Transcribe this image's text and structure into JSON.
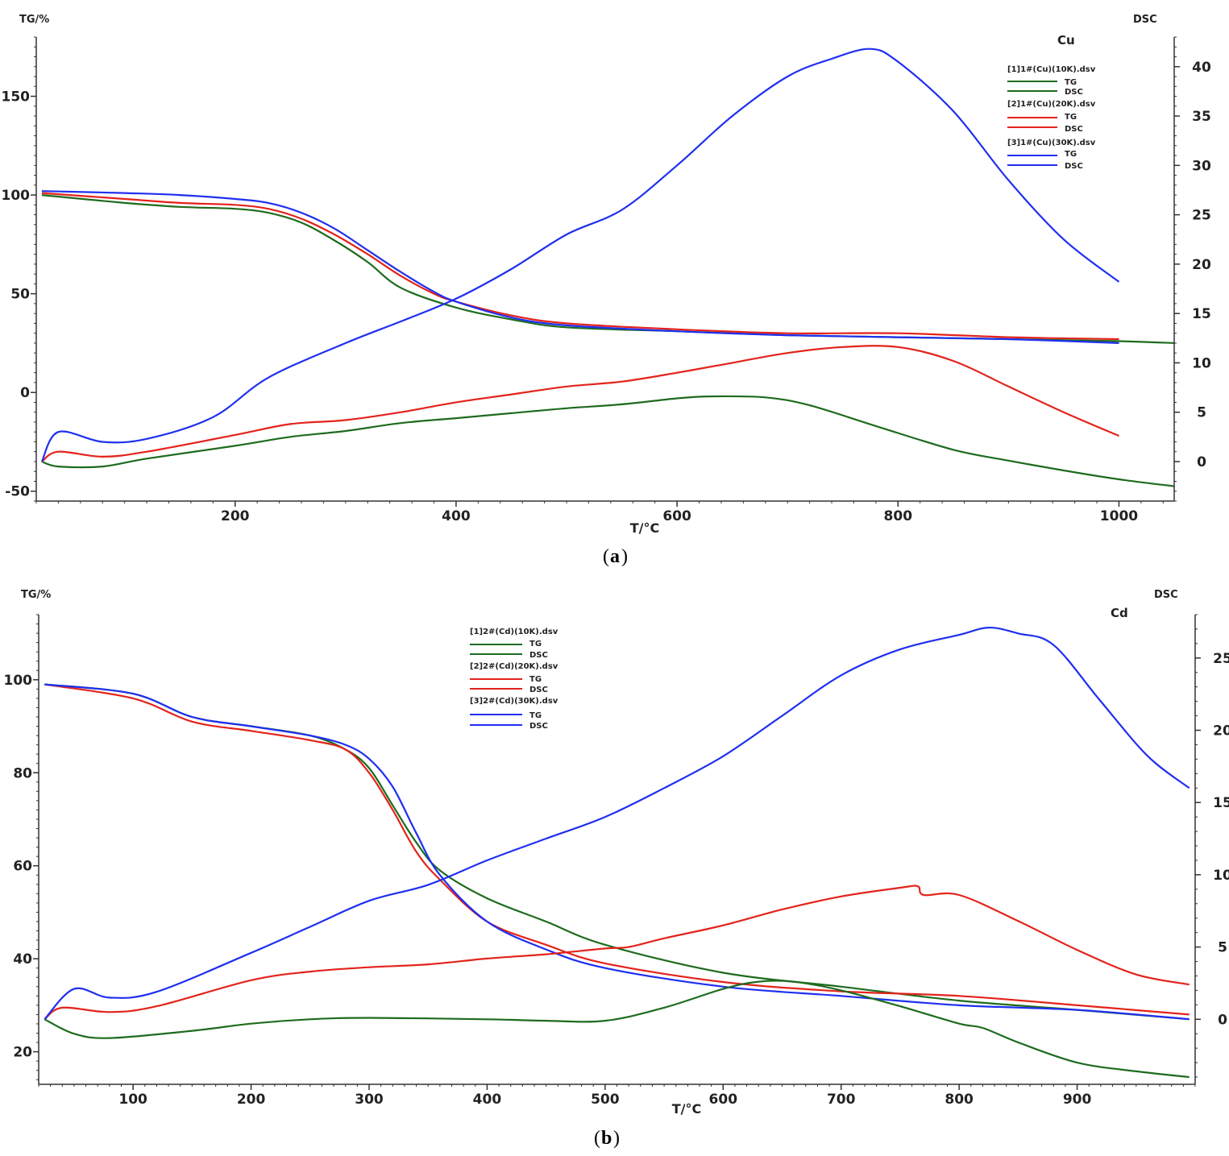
{
  "colors": {
    "green": "#1e6b1e",
    "red": "#e3231b",
    "blue": "#1f2ff0"
  },
  "chart_data": [
    {
      "type": "line",
      "panel": "a",
      "caption_open": "(",
      "caption_letter": "a",
      "caption_close": ")",
      "subtitle": "Cu",
      "ylabel_left": "TG/%",
      "ylabel_right": "DSC",
      "xlabel": "T/°C",
      "xlim": [
        20,
        1050
      ],
      "ylim_left": [
        -55,
        180
      ],
      "ylim_right": [
        -4,
        43
      ],
      "x_ticks": [
        200,
        400,
        600,
        800,
        1000
      ],
      "x_tick_labels": [
        "200",
        "400",
        "600",
        "800",
        "1000"
      ],
      "y_left_ticks": [
        -50,
        0,
        50,
        100,
        150
      ],
      "y_left_tick_labels": [
        "-50",
        "0",
        "50",
        "100",
        "150"
      ],
      "y_right_ticks": [
        0,
        5,
        10,
        15,
        20,
        25,
        30,
        35,
        40
      ],
      "y_right_tick_labels": [
        "0",
        "5",
        "10",
        "15",
        "20",
        "25",
        "30",
        "35",
        "40"
      ],
      "legend": [
        {
          "file": "[1]1#(Cu)(10K).dsv",
          "tg": "TG",
          "dsc": "DSC",
          "color": "#1e6b1e"
        },
        {
          "file": "[2]1#(Cu)(20K).dsv",
          "tg": "TG",
          "dsc": "DSC",
          "color": "#e3231b"
        },
        {
          "file": "[3]1#(Cu)(30K).dsv",
          "tg": "TG",
          "dsc": "DSC",
          "color": "#1f2ff0"
        }
      ],
      "series": [
        {
          "name": "[1]1#(Cu)(10K).dsv TG",
          "axis": "left",
          "color": "#1e6b1e",
          "x": [
            25,
            100,
            150,
            200,
            230,
            260,
            290,
            320,
            350,
            400,
            450,
            500,
            600,
            700,
            800,
            900,
            1000,
            1050
          ],
          "y": [
            100,
            96,
            94,
            93,
            91,
            86,
            77,
            66,
            53,
            43,
            37,
            33,
            31,
            29,
            28,
            27,
            26,
            25
          ]
        },
        {
          "name": "[2]1#(Cu)(20K).dsv TG",
          "axis": "left",
          "color": "#e3231b",
          "x": [
            25,
            100,
            150,
            200,
            230,
            260,
            290,
            320,
            350,
            380,
            400,
            450,
            500,
            600,
            700,
            800,
            900,
            1000
          ],
          "y": [
            101,
            98,
            96,
            95,
            93,
            88,
            80,
            70,
            59,
            50,
            46,
            39,
            35,
            32,
            30,
            30,
            28,
            27
          ]
        },
        {
          "name": "[3]1#(Cu)(30K).dsv TG",
          "axis": "left",
          "color": "#1f2ff0",
          "x": [
            25,
            100,
            150,
            200,
            230,
            260,
            290,
            320,
            350,
            380,
            400,
            450,
            500,
            600,
            700,
            800,
            900,
            1000
          ],
          "y": [
            102,
            101,
            100,
            98,
            96,
            91,
            83,
            72,
            61,
            51,
            46,
            38,
            34,
            31,
            29,
            28,
            27,
            25
          ]
        },
        {
          "name": "[1]1#(Cu)(10K).dsv DSC",
          "axis": "right",
          "color": "#1e6b1e",
          "x": [
            25,
            40,
            80,
            120,
            200,
            250,
            300,
            350,
            400,
            450,
            500,
            550,
            600,
            630,
            680,
            720,
            780,
            850,
            900,
            950,
            1000,
            1050
          ],
          "y": [
            0,
            -0.5,
            -0.5,
            0.3,
            1.6,
            2.5,
            3.1,
            3.9,
            4.4,
            4.9,
            5.4,
            5.8,
            6.4,
            6.6,
            6.5,
            5.7,
            3.6,
            1.2,
            0.1,
            -0.9,
            -1.8,
            -2.5
          ]
        },
        {
          "name": "[2]1#(Cu)(20K).dsv DSC",
          "axis": "right",
          "color": "#e3231b",
          "x": [
            25,
            40,
            80,
            120,
            200,
            250,
            300,
            350,
            400,
            450,
            500,
            550,
            600,
            650,
            700,
            750,
            800,
            850,
            900,
            950,
            1000
          ],
          "y": [
            0,
            1,
            0.5,
            1,
            2.7,
            3.8,
            4.2,
            5,
            6,
            6.8,
            7.6,
            8.1,
            9,
            10,
            11,
            11.6,
            11.6,
            10.2,
            7.6,
            5,
            2.6
          ]
        },
        {
          "name": "[3]1#(Cu)(30K).dsv DSC",
          "axis": "right",
          "color": "#1f2ff0",
          "x": [
            25,
            40,
            80,
            120,
            180,
            230,
            300,
            350,
            400,
            450,
            500,
            550,
            600,
            650,
            700,
            740,
            775,
            800,
            850,
            900,
            950,
            1000
          ],
          "y": [
            0,
            3,
            2,
            2.3,
            4.5,
            8.5,
            12,
            14.2,
            16.5,
            19.5,
            23,
            25.5,
            30,
            35,
            39,
            40.8,
            41.8,
            40.5,
            35.5,
            28.5,
            22.5,
            18.2
          ]
        }
      ]
    },
    {
      "type": "line",
      "panel": "b",
      "caption_open": "(",
      "caption_letter": "b",
      "caption_close": ")",
      "subtitle": "Cd",
      "ylabel_left": "TG/%",
      "ylabel_right": "DSC",
      "xlabel": "T/°C",
      "xlim": [
        20,
        1000
      ],
      "ylim_left": [
        13,
        114
      ],
      "ylim_right": [
        -4.5,
        28
      ],
      "x_ticks": [
        100,
        200,
        300,
        400,
        500,
        600,
        700,
        800,
        900
      ],
      "x_tick_labels": [
        "100",
        "200",
        "300",
        "400",
        "500",
        "600",
        "700",
        "800",
        "900"
      ],
      "y_left_ticks": [
        20,
        40,
        60,
        80,
        100
      ],
      "y_left_tick_labels": [
        "20",
        "40",
        "60",
        "80",
        "100"
      ],
      "y_right_ticks": [
        0,
        5,
        10,
        15,
        20,
        25
      ],
      "y_right_tick_labels": [
        "0",
        "5",
        "10",
        "15",
        "20",
        "25"
      ],
      "legend": [
        {
          "file": "[1]2#(Cd)(10K).dsv",
          "tg": "TG",
          "dsc": "DSC",
          "color": "#1e6b1e"
        },
        {
          "file": "[2]2#(Cd)(20K).dsv",
          "tg": "TG",
          "dsc": "DSC",
          "color": "#e3231b"
        },
        {
          "file": "[3]2#(Cd)(30K).dsv",
          "tg": "TG",
          "dsc": "DSC",
          "color": "#1f2ff0"
        }
      ],
      "series": [
        {
          "name": "[1]2#(Cd)(10K).dsv TG",
          "axis": "left",
          "color": "#1e6b1e",
          "x": [
            25,
            100,
            150,
            200,
            250,
            280,
            300,
            320,
            340,
            360,
            400,
            450,
            500,
            600,
            700,
            800,
            900,
            995
          ],
          "y": [
            99,
            97,
            92,
            90,
            88,
            85,
            81,
            73,
            65,
            59,
            53,
            48,
            43,
            37,
            34,
            31,
            29,
            27
          ]
        },
        {
          "name": "[2]2#(Cd)(20K).dsv TG",
          "axis": "left",
          "color": "#e3231b",
          "x": [
            25,
            100,
            150,
            200,
            250,
            280,
            300,
            320,
            340,
            360,
            400,
            450,
            500,
            600,
            700,
            800,
            900,
            995
          ],
          "y": [
            99,
            96,
            91,
            89,
            87,
            85,
            80,
            72,
            63,
            57,
            48,
            43,
            39,
            35,
            33,
            32,
            30,
            28
          ]
        },
        {
          "name": "[3]2#(Cd)(30K).dsv TG",
          "axis": "left",
          "color": "#1f2ff0",
          "x": [
            25,
            100,
            150,
            200,
            250,
            280,
            300,
            320,
            340,
            360,
            400,
            450,
            500,
            600,
            700,
            800,
            900,
            995
          ],
          "y": [
            99,
            97,
            92,
            90,
            88,
            86,
            83,
            77,
            67,
            58,
            48,
            42,
            38,
            34,
            32,
            30,
            29,
            27
          ]
        },
        {
          "name": "[1]2#(Cd)(10K).dsv DSC",
          "axis": "right",
          "color": "#1e6b1e",
          "x": [
            25,
            50,
            80,
            150,
            200,
            250,
            300,
            400,
            450,
            500,
            550,
            600,
            630,
            660,
            700,
            750,
            800,
            820,
            850,
            900,
            950,
            995
          ],
          "y": [
            0,
            -1,
            -1.3,
            -0.8,
            -0.3,
            0,
            0.1,
            0,
            -0.1,
            -0.1,
            0.8,
            2.1,
            2.6,
            2.6,
            2,
            0.9,
            -0.3,
            -0.6,
            -1.6,
            -3,
            -3.6,
            -4
          ]
        },
        {
          "name": "[2]2#(Cd)(20K).dsv DSC",
          "axis": "right",
          "color": "#e3231b",
          "x": [
            25,
            40,
            80,
            120,
            200,
            250,
            300,
            350,
            400,
            450,
            500,
            520,
            550,
            600,
            650,
            700,
            750,
            765,
            770,
            800,
            850,
            900,
            950,
            995
          ],
          "y": [
            0,
            0.8,
            0.5,
            0.9,
            2.7,
            3.3,
            3.6,
            3.8,
            4.2,
            4.5,
            4.9,
            5,
            5.6,
            6.5,
            7.6,
            8.5,
            9.1,
            9.2,
            8.6,
            8.6,
            6.8,
            4.8,
            3.1,
            2.4
          ]
        },
        {
          "name": "[3]2#(Cd)(30K).dsv DSC",
          "axis": "right",
          "color": "#1f2ff0",
          "x": [
            25,
            50,
            80,
            120,
            200,
            250,
            300,
            350,
            400,
            450,
            500,
            550,
            600,
            650,
            700,
            750,
            800,
            825,
            850,
            880,
            920,
            960,
            995
          ],
          "y": [
            0,
            2.1,
            1.5,
            1.9,
            4.6,
            6.4,
            8.2,
            9.3,
            11,
            12.5,
            14,
            16,
            18.2,
            21,
            23.8,
            25.6,
            26.6,
            27.1,
            26.7,
            25.9,
            22,
            18.2,
            16
          ]
        }
      ]
    }
  ]
}
